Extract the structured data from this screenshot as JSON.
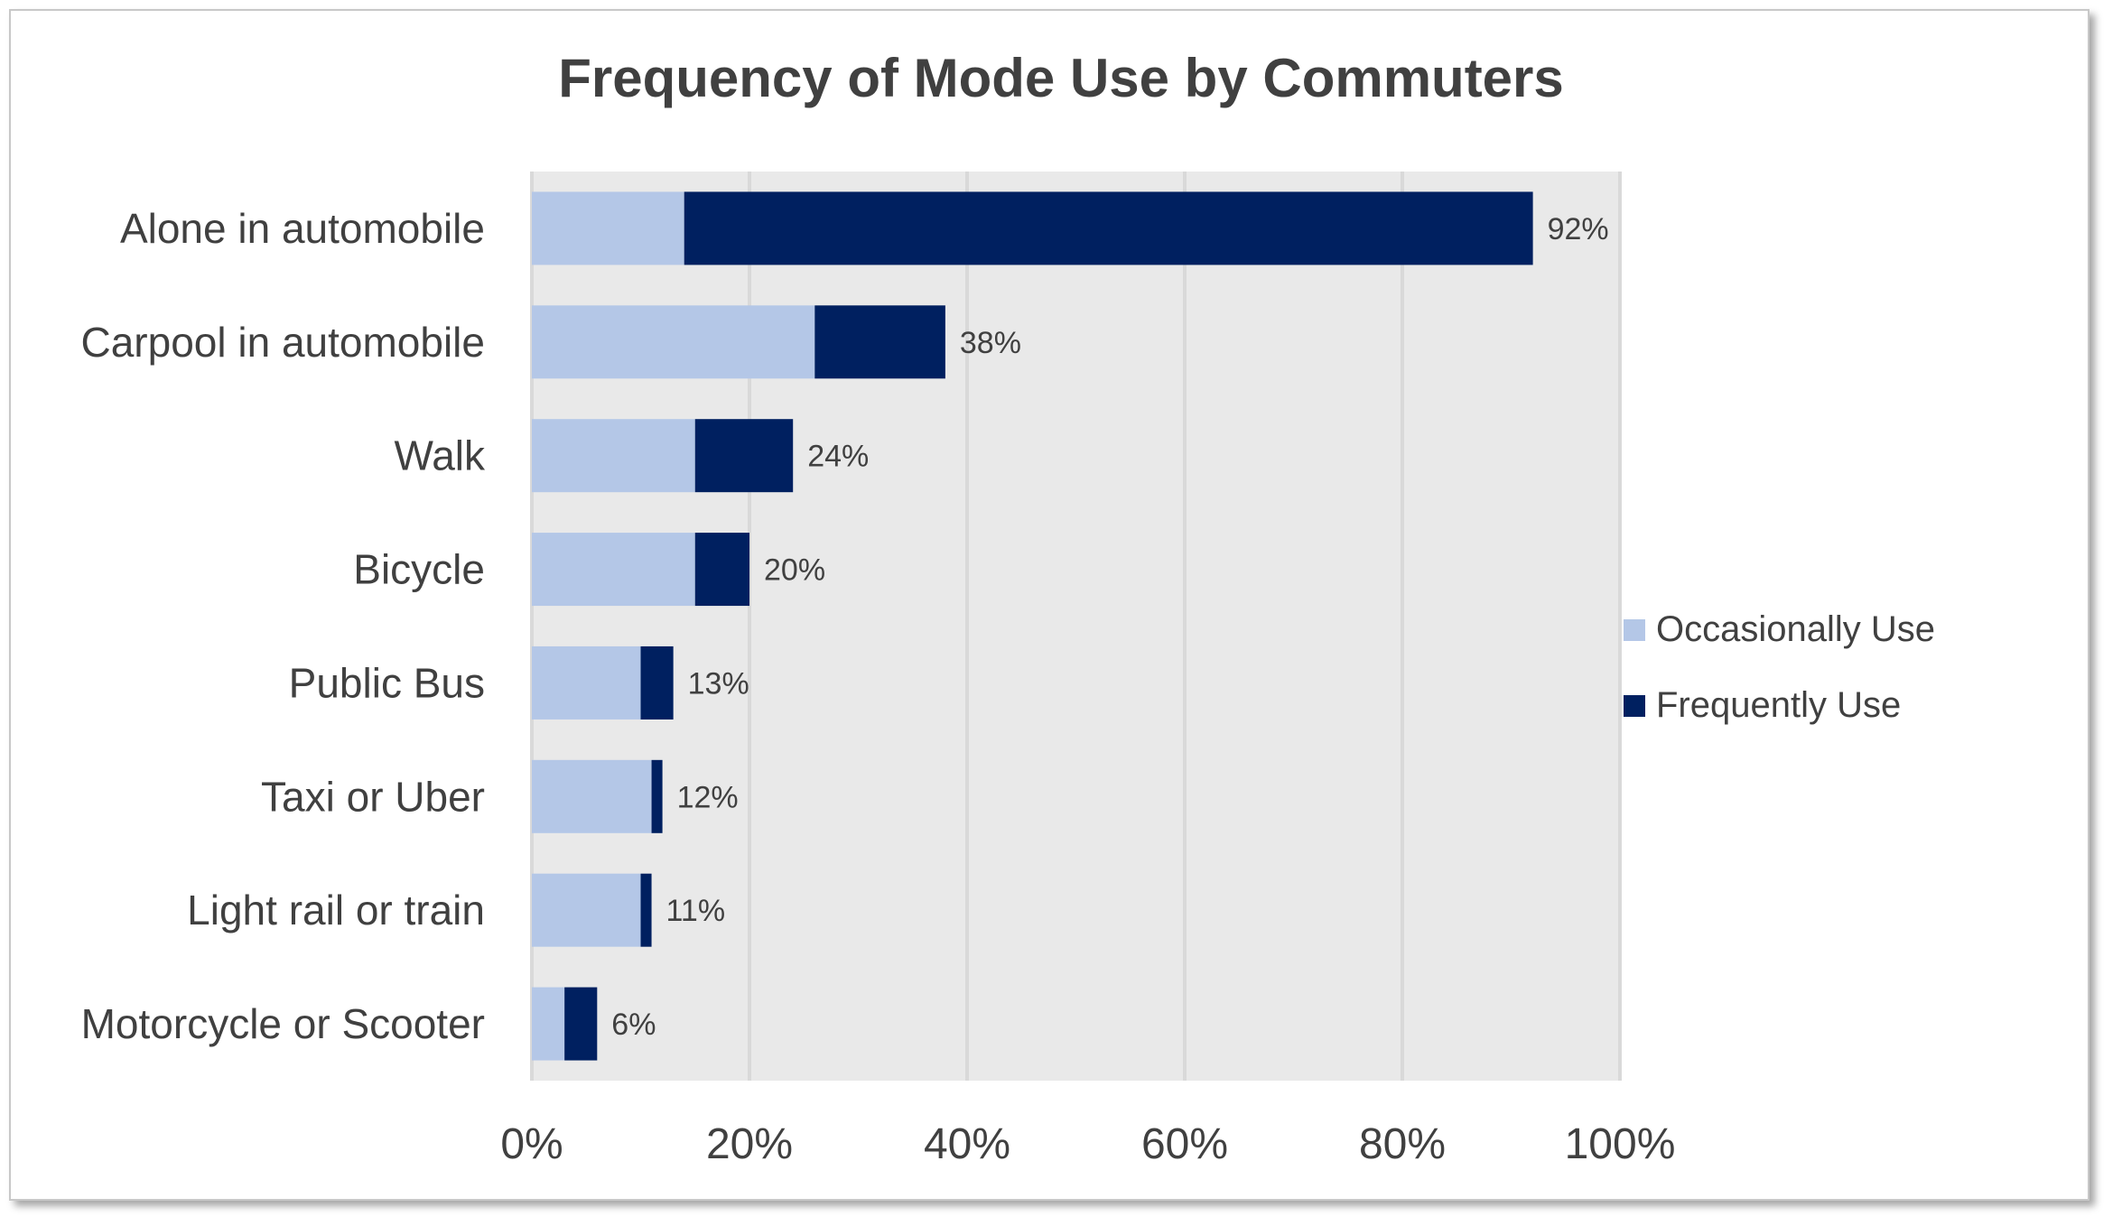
{
  "chart_data": {
    "type": "bar",
    "orientation": "horizontal",
    "stacked": true,
    "title": "Frequency of Mode Use by Commuters",
    "categories": [
      "Alone in automobile",
      "Carpool in automobile",
      "Walk",
      "Bicycle",
      "Public Bus",
      "Taxi or Uber",
      "Light rail or train",
      "Motorcycle or Scooter"
    ],
    "series": [
      {
        "name": "Occasionally Use",
        "color": "#b4c7e7",
        "values": [
          14,
          26,
          15,
          15,
          10,
          11,
          10,
          3
        ]
      },
      {
        "name": "Frequently Use",
        "color": "#002060",
        "values": [
          78,
          12,
          9,
          5,
          3,
          1,
          1,
          3
        ]
      }
    ],
    "data_labels": [
      "92%",
      "38%",
      "24%",
      "20%",
      "13%",
      "12%",
      "11%",
      "6%"
    ],
    "xlim": [
      0,
      100
    ],
    "x_ticks": [
      "0%",
      "20%",
      "40%",
      "60%",
      "80%",
      "100%"
    ],
    "grid": true,
    "plot_background": "#e9e9e9",
    "legend_position": "right"
  }
}
